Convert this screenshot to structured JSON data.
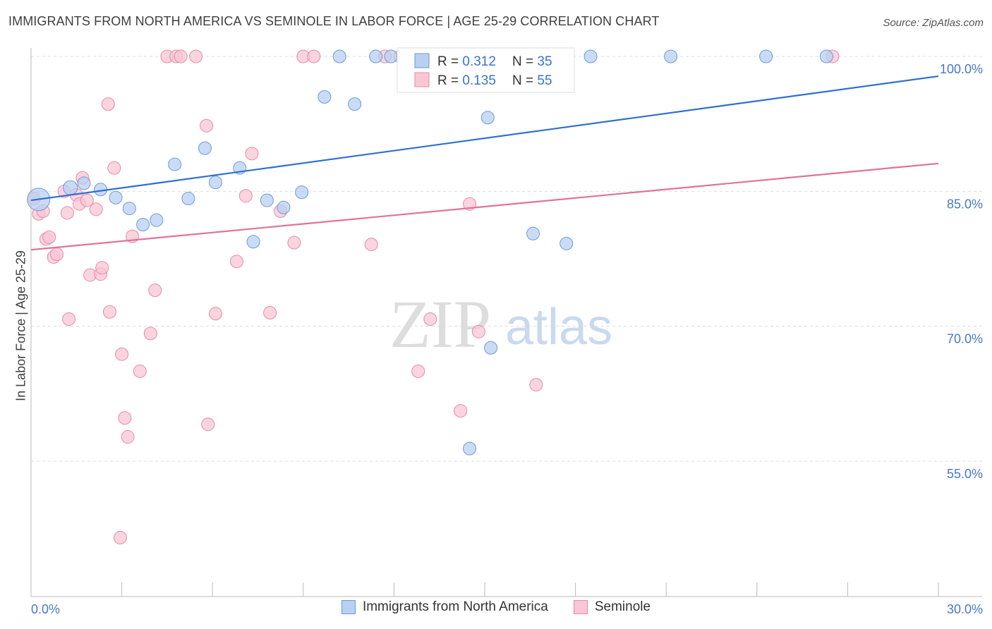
{
  "title": "IMMIGRANTS FROM NORTH AMERICA VS SEMINOLE IN LABOR FORCE | AGE 25-29 CORRELATION CHART",
  "source": "Source: ZipAtlas.com",
  "watermark": {
    "zip": "ZIP",
    "atlas": "atlas"
  },
  "colors": {
    "blue_fill": "#b8d0f2",
    "blue_stroke": "#6a9ad8",
    "blue_line": "#2f6fcf",
    "pink_fill": "#f8c6d4",
    "pink_stroke": "#e88aa6",
    "pink_line": "#e0739a",
    "tick_label": "#4a78c2",
    "grid": "#dcdcdc"
  },
  "legend": {
    "rows": [
      {
        "r_label": "R = ",
        "r_value": "0.312",
        "n_label": "N = ",
        "n_value": "35"
      },
      {
        "r_label": "R = ",
        "r_value": "0.135",
        "n_label": "N = ",
        "n_value": "55"
      }
    ]
  },
  "bottom_legend": [
    "Immigrants from North America",
    "Seminole"
  ],
  "chart_data": {
    "type": "scatter",
    "xlabel": "",
    "ylabel": "In Labor Force | Age 25-29",
    "xlim": [
      0,
      30
    ],
    "ylim": [
      40,
      102.5
    ],
    "x_tick_labels": [
      {
        "value": 0,
        "label": "0.0%"
      },
      {
        "value": 30,
        "label": "30.0%"
      }
    ],
    "y_tick_labels": [
      {
        "value": 100,
        "label": "100.0%"
      },
      {
        "value": 85,
        "label": "85.0%"
      },
      {
        "value": 70,
        "label": "70.0%"
      },
      {
        "value": 55,
        "label": "55.0%"
      }
    ],
    "grid": "horizontal dashed",
    "series": [
      {
        "name": "Immigrants from North America",
        "color": "blue",
        "trend": {
          "x0": 0,
          "y0": 84.0,
          "x1": 30,
          "y1": 97.8
        },
        "points": [
          [
            0.25,
            84.1,
            16
          ],
          [
            1.3,
            85.4,
            10
          ],
          [
            1.75,
            85.9,
            9
          ],
          [
            2.3,
            85.2,
            9
          ],
          [
            2.8,
            84.3,
            9
          ],
          [
            3.25,
            83.1,
            9
          ],
          [
            3.7,
            81.3,
            9
          ],
          [
            4.15,
            81.8,
            9
          ],
          [
            4.75,
            88.0,
            9
          ],
          [
            5.2,
            84.2,
            9
          ],
          [
            5.75,
            89.8,
            9
          ],
          [
            6.1,
            86.0,
            9
          ],
          [
            6.9,
            87.6,
            9
          ],
          [
            7.35,
            79.4,
            9
          ],
          [
            7.8,
            84.0,
            9
          ],
          [
            8.35,
            83.2,
            9
          ],
          [
            8.95,
            84.9,
            9
          ],
          [
            9.7,
            95.5,
            9
          ],
          [
            10.2,
            100.0,
            9
          ],
          [
            10.7,
            94.7,
            9
          ],
          [
            11.4,
            100.0,
            9
          ],
          [
            11.9,
            100.0,
            9
          ],
          [
            12.3,
            100.0,
            9
          ],
          [
            14.8,
            100.0,
            9
          ],
          [
            15.1,
            93.2,
            9
          ],
          [
            15.2,
            67.6,
            9
          ],
          [
            16.05,
            100.0,
            9
          ],
          [
            16.6,
            80.3,
            9
          ],
          [
            17.7,
            79.2,
            9
          ],
          [
            18.5,
            100.0,
            9
          ],
          [
            21.15,
            100.0,
            9
          ],
          [
            24.3,
            100.0,
            9
          ],
          [
            26.3,
            100.0,
            9
          ],
          [
            14.5,
            56.4,
            9
          ],
          [
            13.0,
            100.0,
            9
          ]
        ]
      },
      {
        "name": "Seminole",
        "color": "pink",
        "trend": {
          "x0": 0,
          "y0": 78.5,
          "x1": 30,
          "y1": 88.1
        },
        "points": [
          [
            0.1,
            84.2,
            9
          ],
          [
            0.25,
            82.5,
            9
          ],
          [
            0.4,
            82.8,
            9
          ],
          [
            0.5,
            79.7,
            9
          ],
          [
            0.6,
            79.9,
            9
          ],
          [
            0.75,
            77.7,
            9
          ],
          [
            0.85,
            78.0,
            9
          ],
          [
            1.1,
            85.0,
            9
          ],
          [
            1.2,
            82.6,
            9
          ],
          [
            1.25,
            70.8,
            9
          ],
          [
            1.5,
            84.6,
            9
          ],
          [
            1.6,
            83.6,
            9
          ],
          [
            1.7,
            86.5,
            9
          ],
          [
            1.85,
            84.0,
            9
          ],
          [
            1.95,
            75.7,
            9
          ],
          [
            2.15,
            83.0,
            9
          ],
          [
            2.3,
            75.8,
            9
          ],
          [
            2.35,
            76.5,
            9
          ],
          [
            2.55,
            94.7,
            9
          ],
          [
            2.6,
            71.6,
            9
          ],
          [
            2.75,
            87.6,
            9
          ],
          [
            2.95,
            46.5,
            9
          ],
          [
            3.0,
            66.9,
            9
          ],
          [
            3.1,
            59.8,
            9
          ],
          [
            3.2,
            57.7,
            9
          ],
          [
            3.35,
            80.0,
            9
          ],
          [
            3.6,
            65.0,
            9
          ],
          [
            3.95,
            69.2,
            9
          ],
          [
            4.1,
            74.0,
            9
          ],
          [
            4.5,
            100.0,
            9
          ],
          [
            4.8,
            100.0,
            9
          ],
          [
            4.95,
            100.0,
            9
          ],
          [
            5.45,
            100.0,
            9
          ],
          [
            5.8,
            92.3,
            9
          ],
          [
            5.85,
            59.1,
            9
          ],
          [
            6.1,
            71.4,
            9
          ],
          [
            6.8,
            77.2,
            9
          ],
          [
            7.1,
            84.5,
            9
          ],
          [
            7.3,
            89.2,
            9
          ],
          [
            7.9,
            71.5,
            9
          ],
          [
            8.25,
            82.8,
            9
          ],
          [
            8.7,
            79.3,
            9
          ],
          [
            9.0,
            100.0,
            9
          ],
          [
            9.35,
            100.0,
            9
          ],
          [
            11.25,
            79.1,
            9
          ],
          [
            11.7,
            100.0,
            9
          ],
          [
            12.8,
            65.0,
            9
          ],
          [
            13.2,
            70.8,
            9
          ],
          [
            14.2,
            60.6,
            9
          ],
          [
            14.5,
            83.6,
            9
          ],
          [
            14.8,
            69.4,
            9
          ],
          [
            15.8,
            100.0,
            9
          ],
          [
            16.7,
            63.5,
            9
          ],
          [
            26.5,
            100.0,
            9
          ],
          [
            12.2,
            100.0,
            9
          ]
        ]
      }
    ]
  }
}
